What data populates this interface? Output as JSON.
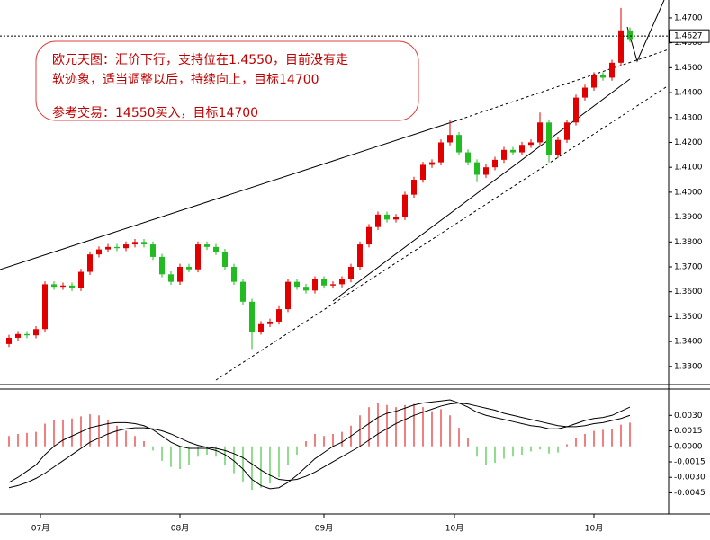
{
  "chart_data": [
    {
      "type": "candlestick",
      "open": [
        1.339,
        1.3415,
        1.343,
        1.3425,
        1.345,
        1.363,
        1.362,
        1.3625,
        1.3615,
        1.368,
        1.375,
        1.377,
        1.378,
        1.3775,
        1.379,
        1.38,
        1.379,
        1.374,
        1.367,
        1.364,
        1.37,
        1.369,
        1.379,
        1.378,
        1.376,
        1.37,
        1.364,
        1.356,
        1.344,
        1.347,
        1.348,
        1.353,
        1.364,
        1.362,
        1.3605,
        1.365,
        1.3625,
        1.363,
        1.365,
        1.37,
        1.379,
        1.386,
        1.391,
        1.389,
        1.39,
        1.399,
        1.405,
        1.411,
        1.412,
        1.42,
        1.423,
        1.416,
        1.412,
        1.407,
        1.41,
        1.413,
        1.417,
        1.416,
        1.419,
        1.42,
        1.428,
        1.415,
        1.421,
        1.428,
        1.438,
        1.442,
        1.447,
        1.446,
        1.452,
        1.465
      ],
      "high": [
        1.3427,
        1.3442,
        1.3442,
        1.3462,
        1.3642,
        1.3642,
        1.3637,
        1.3637,
        1.3692,
        1.3762,
        1.3782,
        1.3792,
        1.3792,
        1.3802,
        1.3812,
        1.3812,
        1.3802,
        1.3752,
        1.3682,
        1.3712,
        1.3712,
        1.3802,
        1.3802,
        1.3792,
        1.3772,
        1.3712,
        1.3652,
        1.3572,
        1.3482,
        1.3492,
        1.3542,
        1.3652,
        1.3652,
        1.3632,
        1.3662,
        1.3662,
        1.3642,
        1.3662,
        1.3712,
        1.3802,
        1.3872,
        1.3922,
        1.3922,
        1.3912,
        1.4002,
        1.4062,
        1.4122,
        1.4132,
        1.4212,
        1.429,
        1.4242,
        1.4172,
        1.4132,
        1.4112,
        1.4142,
        1.4182,
        1.4182,
        1.4202,
        1.4212,
        1.432,
        1.4292,
        1.4222,
        1.4292,
        1.4392,
        1.4432,
        1.4482,
        1.4482,
        1.4532,
        1.474,
        1.4662
      ],
      "low": [
        1.3378,
        1.3403,
        1.3413,
        1.3413,
        1.3438,
        1.3608,
        1.3608,
        1.3603,
        1.3603,
        1.3668,
        1.3738,
        1.3758,
        1.3763,
        1.3763,
        1.3778,
        1.3778,
        1.3728,
        1.3658,
        1.3628,
        1.3628,
        1.3678,
        1.3678,
        1.3768,
        1.3748,
        1.3688,
        1.3628,
        1.3548,
        1.337,
        1.3428,
        1.3458,
        1.3468,
        1.3518,
        1.3608,
        1.3593,
        1.3593,
        1.3613,
        1.3613,
        1.3618,
        1.3638,
        1.3688,
        1.3778,
        1.3848,
        1.3878,
        1.3878,
        1.3888,
        1.3978,
        1.4038,
        1.4098,
        1.4108,
        1.4188,
        1.4148,
        1.4108,
        1.404,
        1.4058,
        1.4088,
        1.4118,
        1.4148,
        1.4148,
        1.4178,
        1.4188,
        1.412,
        1.4138,
        1.4198,
        1.4268,
        1.4368,
        1.4408,
        1.4448,
        1.4448,
        1.4508,
        1.4603
      ],
      "close": [
        1.3415,
        1.343,
        1.3425,
        1.345,
        1.363,
        1.362,
        1.3625,
        1.3615,
        1.368,
        1.375,
        1.377,
        1.378,
        1.3775,
        1.379,
        1.38,
        1.379,
        1.374,
        1.367,
        1.364,
        1.37,
        1.369,
        1.379,
        1.378,
        1.376,
        1.37,
        1.364,
        1.356,
        1.344,
        1.347,
        1.348,
        1.353,
        1.364,
        1.362,
        1.3605,
        1.365,
        1.3625,
        1.363,
        1.365,
        1.37,
        1.379,
        1.386,
        1.391,
        1.389,
        1.39,
        1.399,
        1.405,
        1.411,
        1.412,
        1.42,
        1.423,
        1.416,
        1.412,
        1.407,
        1.41,
        1.413,
        1.417,
        1.416,
        1.419,
        1.42,
        1.428,
        1.415,
        1.421,
        1.428,
        1.438,
        1.442,
        1.447,
        1.446,
        1.452,
        1.465,
        1.4615
      ],
      "up_color": "#e00000",
      "down_color": "#22bb22",
      "ylim": [
        1.3238,
        1.4772
      ],
      "yticks": [
        {
          "value": 1.33,
          "label": "1.3300"
        },
        {
          "value": 1.34,
          "label": "1.3400"
        },
        {
          "value": 1.35,
          "label": "1.3500"
        },
        {
          "value": 1.36,
          "label": "1.3600"
        },
        {
          "value": 1.37,
          "label": "1.3700"
        },
        {
          "value": 1.38,
          "label": "1.3800"
        },
        {
          "value": 1.39,
          "label": "1.3900"
        },
        {
          "value": 1.4,
          "label": "1.4000"
        },
        {
          "value": 1.41,
          "label": "1.4100"
        },
        {
          "value": 1.42,
          "label": "1.4200"
        },
        {
          "value": 1.43,
          "label": "1.4300"
        },
        {
          "value": 1.44,
          "label": "1.4400"
        },
        {
          "value": 1.45,
          "label": "1.4500"
        },
        {
          "value": 1.46,
          "label": "1.4600"
        },
        {
          "value": 1.47,
          "label": "1.4700"
        }
      ],
      "last_price": 1.4627,
      "annotation": [
        "欧元天图：汇价下行，支持位在1.4550，目前没有走",
        "软迹象，适当调整以后，持续向上，目标14700",
        "参考交易：14550买入，目标14700"
      ],
      "xticks": [
        {
          "value": 3.5,
          "label": "07月"
        },
        {
          "value": 19,
          "label": "08月"
        },
        {
          "value": 35,
          "label": "09月"
        },
        {
          "value": 49.5,
          "label": "10月"
        },
        {
          "value": 65,
          "label": "10月"
        }
      ]
    },
    {
      "type": "macd",
      "histogram": [
        0.001,
        0.0012,
        0.0013,
        0.0014,
        0.0022,
        0.0025,
        0.0026,
        0.0027,
        0.0029,
        0.0031,
        0.003,
        0.0026,
        0.002,
        0.0015,
        0.001,
        0.0005,
        -0.0004,
        -0.0014,
        -0.002,
        -0.0022,
        -0.0018,
        -0.001,
        -0.0008,
        -0.001,
        -0.0018,
        -0.0026,
        -0.0034,
        -0.0042,
        -0.004,
        -0.0036,
        -0.003,
        -0.0018,
        -0.0008,
        0.0005,
        0.0012,
        0.001,
        0.0012,
        0.0014,
        0.002,
        0.003,
        0.0038,
        0.0042,
        0.004,
        0.0038,
        0.004,
        0.0041,
        0.0038,
        0.0034,
        0.0036,
        0.003,
        0.0018,
        0.0008,
        -0.001,
        -0.0018,
        -0.0016,
        -0.0012,
        -0.001,
        -0.0008,
        -0.0005,
        -0.0003,
        -0.0007,
        -0.0006,
        0.0002,
        0.0008,
        0.0012,
        0.0015,
        0.0016,
        0.0017,
        0.0021,
        0.0023
      ],
      "pos_color": "#e00000",
      "neg_color": "#22bb22",
      "series": [
        {
          "color": "#000000",
          "values": [
            -0.0035,
            -0.003,
            -0.0024,
            -0.0018,
            -0.0008,
            0.0,
            0.0006,
            0.001,
            0.0014,
            0.0018,
            0.002,
            0.0022,
            0.0023,
            0.0023,
            0.0022,
            0.002,
            0.0016,
            0.001,
            0.0004,
            0.0,
            -0.0002,
            -0.0002,
            -0.0002,
            -0.0004,
            -0.0008,
            -0.0014,
            -0.0022,
            -0.0032,
            -0.0038,
            -0.0041,
            -0.004,
            -0.0035,
            -0.0028,
            -0.002,
            -0.0012,
            -0.0006,
            0.0,
            0.0004,
            0.001,
            0.0016,
            0.0022,
            0.0028,
            0.0032,
            0.0034,
            0.0037,
            0.004,
            0.0042,
            0.0043,
            0.0044,
            0.0045,
            0.0042,
            0.0038,
            0.0033,
            0.003,
            0.0028,
            0.0026,
            0.0024,
            0.0022,
            0.002,
            0.0019,
            0.0017,
            0.0017,
            0.0019,
            0.0022,
            0.0025,
            0.0027,
            0.0028,
            0.003,
            0.0034,
            0.0038
          ]
        },
        {
          "color": "#000000",
          "values": [
            -0.004,
            -0.0038,
            -0.0035,
            -0.0031,
            -0.0026,
            -0.002,
            -0.0014,
            -0.0008,
            -0.0002,
            0.0004,
            0.0008,
            0.0012,
            0.0015,
            0.0017,
            0.0018,
            0.0018,
            0.0017,
            0.0015,
            0.0012,
            0.0008,
            0.0004,
            0.0001,
            -0.0001,
            -0.0002,
            -0.0004,
            -0.0007,
            -0.0011,
            -0.0017,
            -0.0023,
            -0.0028,
            -0.0032,
            -0.0033,
            -0.0032,
            -0.0029,
            -0.0025,
            -0.002,
            -0.0015,
            -0.001,
            -0.0005,
            0.0,
            0.0006,
            0.0012,
            0.0017,
            0.0022,
            0.0026,
            0.003,
            0.0033,
            0.0036,
            0.0039,
            0.0041,
            0.0042,
            0.0041,
            0.0039,
            0.0037,
            0.0035,
            0.0032,
            0.003,
            0.0028,
            0.0026,
            0.0024,
            0.0022,
            0.002,
            0.0019,
            0.0019,
            0.002,
            0.0022,
            0.0023,
            0.0025,
            0.0027,
            0.003
          ]
        }
      ],
      "ylim": [
        -0.0062,
        0.0052
      ],
      "yticks": [
        {
          "value": 0.003,
          "label": "0.0030"
        },
        {
          "value": 0.0015,
          "label": "0.0015"
        },
        {
          "value": 0,
          "label": "0.0000"
        },
        {
          "value": -0.0015,
          "label": "-0.0015"
        },
        {
          "value": -0.003,
          "label": "-0.0030"
        },
        {
          "value": -0.0045,
          "label": "-0.0045"
        }
      ]
    }
  ]
}
